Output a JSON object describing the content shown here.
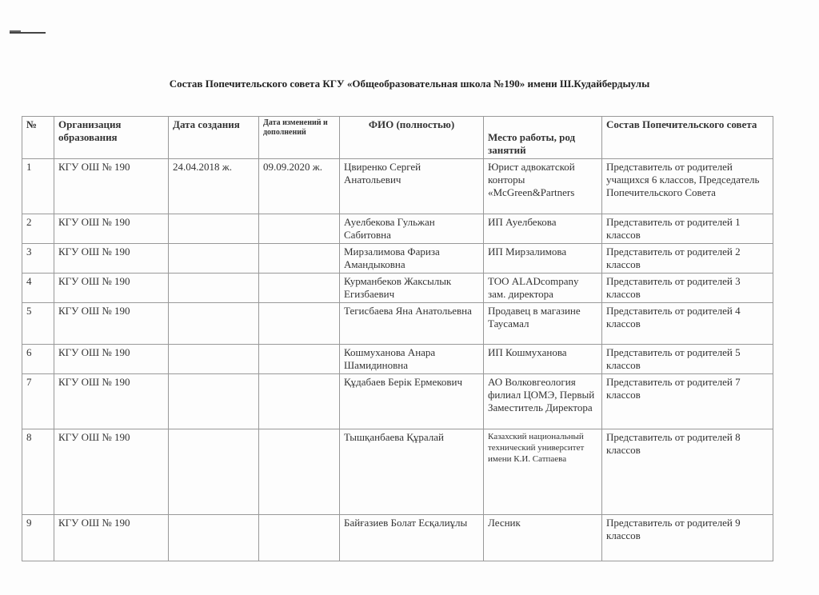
{
  "title": "Состав Попечительского совета КГУ  «Общеобразовательная школа №190» имени Ш.Кудайбердыулы",
  "headers": [
    "№",
    "Организация образования",
    "Дата создания",
    "Дата изменений и дополнений",
    "ФИО (полностью)",
    "Место работы, род занятий",
    "Состав Попечительского совета"
  ],
  "rows": [
    {
      "n": "1",
      "org": "КГУ ОШ № 190",
      "created": "24.04.2018 ж.",
      "changed": "09.09.2020 ж.",
      "fio": "Цвиренко Сергей Анатольевич",
      "work": "Юрист адвокатской конторы «McGreen&Partners",
      "role": "Представитель  от родителей учащихся 6 классов, Председатель Попечительского Совета"
    },
    {
      "n": "2",
      "org": "КГУ ОШ № 190",
      "created": "",
      "changed": "",
      "fio": "Ауелбекова Гульжан Сабитовна",
      "work": "ИП Ауелбекова",
      "role": "Представитель от родителей 1 классов"
    },
    {
      "n": "3",
      "org": "КГУ ОШ № 190",
      "created": "",
      "changed": "",
      "fio": "Мирзалимова Фариза Амандыковна",
      "work": "ИП Мирзалимова",
      "role": "Представитель от родителей 2 классов"
    },
    {
      "n": "4",
      "org": "КГУ ОШ № 190",
      "created": "",
      "changed": "",
      "fio": "Курманбеков Жаксылык Егизбаевич",
      "work": "ТОО ALADcompany зам. директора",
      "role": "Представитель от родителей 3 классов"
    },
    {
      "n": "5",
      "org": "КГУ ОШ № 190",
      "created": "",
      "changed": "",
      "fio": "Тегисбаева Яна Анатольевна",
      "work": "Продавец в магазине Таусамал",
      "role": "Представитель  от родителей 4 классов"
    },
    {
      "n": "6",
      "org": "КГУ ОШ № 190",
      "created": "",
      "changed": "",
      "fio": "Кошмуханова Анара Шамидиновна",
      "work": "ИП Кошмуханова",
      "role": "Представитель  от родителей 5 классов"
    },
    {
      "n": "7",
      "org": "КГУ ОШ № 190",
      "created": "",
      "changed": "",
      "fio": "Құдабаев Берік Ермекович",
      "work": "АО Волковгеология филиал ЦОМЭ, Первый Заместитель Директора",
      "role": "Представитель от родителей 7 классов"
    },
    {
      "n": "8",
      "org": "КГУ ОШ № 190",
      "created": "",
      "changed": "",
      "fio": "Тышқанбаева Құралай",
      "work": "Казахский национальный технический университет имени К.И. Сатпаева",
      "role": "Представитель от родителей 8 классов"
    },
    {
      "n": "9",
      "org": "КГУ ОШ № 190",
      "created": "",
      "changed": "",
      "fio": "Байғазиев Болат Есқалиұлы",
      "work": "Лесник",
      "role": "Представитель от родителей 9 классов"
    }
  ]
}
